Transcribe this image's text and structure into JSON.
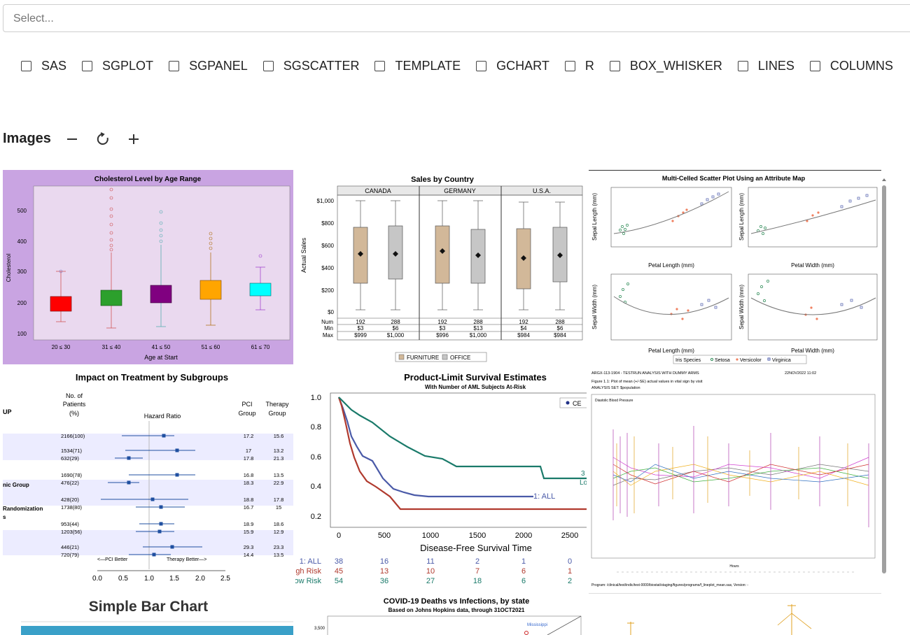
{
  "search": {
    "placeholder": "Select..."
  },
  "filters": [
    {
      "label": "SAS"
    },
    {
      "label": "SGPLOT"
    },
    {
      "label": "SGPANEL"
    },
    {
      "label": "SGSCATTER"
    },
    {
      "label": "TEMPLATE"
    },
    {
      "label": "GCHART"
    },
    {
      "label": "R"
    },
    {
      "label": "BOX_WHISKER"
    },
    {
      "label": "LINES"
    },
    {
      "label": "COLUMNS"
    }
  ],
  "images_section": {
    "title": "Images"
  },
  "thumbnails": {
    "cholesterol": {
      "title": "Cholesterol Level by Age Range",
      "ylabel": "Cholesterol",
      "xlabel": "Age at Start",
      "yticks": [
        "500",
        "400",
        "300",
        "200",
        "100"
      ],
      "categories": [
        "20 ≤ 30",
        "31 ≤ 40",
        "41 ≤ 50",
        "51 ≤ 60",
        "61 ≤ 70"
      ],
      "colors": [
        "#ff0000",
        "#2ca02c",
        "#800080",
        "#ffa500",
        "#00ffff"
      ]
    },
    "sales": {
      "title": "Sales by Country",
      "ylabel": "Actual Sales",
      "panels": [
        "CANADA",
        "GERMANY",
        "U.S.A."
      ],
      "yticks": [
        "$1,000",
        "$800",
        "$600",
        "$400",
        "$200",
        "$0"
      ],
      "row_labels": [
        "Num",
        "Min",
        "Max"
      ],
      "stats": [
        [
          "192",
          "288"
        ],
        [
          "$3",
          "$6"
        ],
        [
          "$999",
          "$1,000"
        ],
        [
          "192",
          "288"
        ],
        [
          "$3",
          "$13"
        ],
        [
          "$996",
          "$1,000"
        ],
        [
          "192",
          "288"
        ],
        [
          "$4",
          "$6"
        ],
        [
          "$984",
          "$984"
        ]
      ],
      "legend": [
        "FURNITURE",
        "OFFICE"
      ]
    },
    "scatter": {
      "title": "Multi-Celled Scatter Plot Using an Attribute Map",
      "xlabels": [
        "Petal Length (mm)",
        "Petal Width (mm)",
        "Petal Length (mm)",
        "Petal Width (mm)"
      ],
      "ylabels": [
        "Sepal Length (mm)",
        "Sepal Length (mm)",
        "Sepal Width (mm)",
        "Sepal Width (mm)"
      ],
      "legend_title": "Iris Species",
      "legend": [
        "Setosa",
        "Versicolor",
        "Virginica"
      ]
    },
    "forest": {
      "title": "Impact on Treatment by Subgroups",
      "col_patients": [
        "No. of",
        "Patients",
        "(%)"
      ],
      "col_hazard": "Hazard Ratio",
      "col_pci": [
        "PCI",
        "Group"
      ],
      "col_therapy": [
        "Therapy",
        "Group"
      ],
      "left_labels": [
        "UP",
        "nic Group",
        "Randomization",
        "s"
      ],
      "rows": [
        [
          "2166(100)",
          "17.2",
          "15.6"
        ],
        [
          "1534(71)",
          "17",
          "13.2"
        ],
        [
          "632(29)",
          "17.8",
          "21.3"
        ],
        [
          "1690(78)",
          "16.8",
          "13.5"
        ],
        [
          "476(22)",
          "18.3",
          "22.9"
        ],
        [
          "428(20)",
          "18.8",
          "17.8"
        ],
        [
          "1738(80)",
          "16.7",
          "15"
        ],
        [
          "953(44)",
          "18.9",
          "18.6"
        ],
        [
          "1203(56)",
          "15.9",
          "12.9"
        ],
        [
          "446(21)",
          "29.3",
          "23.3"
        ],
        [
          "720(79)",
          "14.4",
          "13.5"
        ]
      ],
      "axis_ticks": [
        "0.0",
        "0.5",
        "1.0",
        "1.5",
        "2.0",
        "2.5"
      ],
      "better_left": "<—PCI Better",
      "better_right": "Therapy Better—>"
    },
    "survival": {
      "title": "Product-Limit Survival Estimates",
      "subtitle": "With Number of AML Subjects At-Risk",
      "legend": "CE",
      "all_label": "1: ALL",
      "xlabel": "Disease-Free Survival Time",
      "xticks": [
        "0",
        "500",
        "1000",
        "1500",
        "2000",
        "2500"
      ],
      "yticks": [
        "1.0",
        "0.8",
        "0.6",
        "0.4",
        "0.2"
      ],
      "risk_labels": [
        "1: ALL",
        "gh Risk",
        "ow Risk"
      ],
      "risk_rows": [
        [
          "38",
          "16",
          "11",
          "2",
          "1",
          "0"
        ],
        [
          "45",
          "13",
          "10",
          "7",
          "6",
          "1"
        ],
        [
          "54",
          "36",
          "27",
          "18",
          "6",
          "2"
        ]
      ],
      "risk_colors": [
        "#4a5aa8",
        "#b03a2e",
        "#1a7a6a"
      ],
      "side_labels": [
        "3",
        "Lo"
      ]
    },
    "vitals": {
      "header_left": "ARGX-113-1904 - TESTRUN ANALYSIS WITH DUMMY ARMS",
      "header_right": "22NOV2022 11:02",
      "figure": "Figure 1.1: Plot of mean (+/-SE) actual values in vital sign by visit",
      "analysis": "ANALYSIS SET: $population",
      "panel": "Diastolic Blood Pressure",
      "xlabel": "Hours",
      "footer": "Program: /clinical/test/indic/test-0000/biostat/staging/figures/programs/f_lineplot_mean.sas, Version: -"
    },
    "bar": {
      "title": "Simple Bar Chart"
    },
    "covid": {
      "title": "COVID-19 Deaths vs Infections, by state",
      "subtitle": "Based on Johns Hopkins data, through 31OCT2021",
      "ytick": "3,500",
      "point_label": "Mississippi"
    }
  }
}
